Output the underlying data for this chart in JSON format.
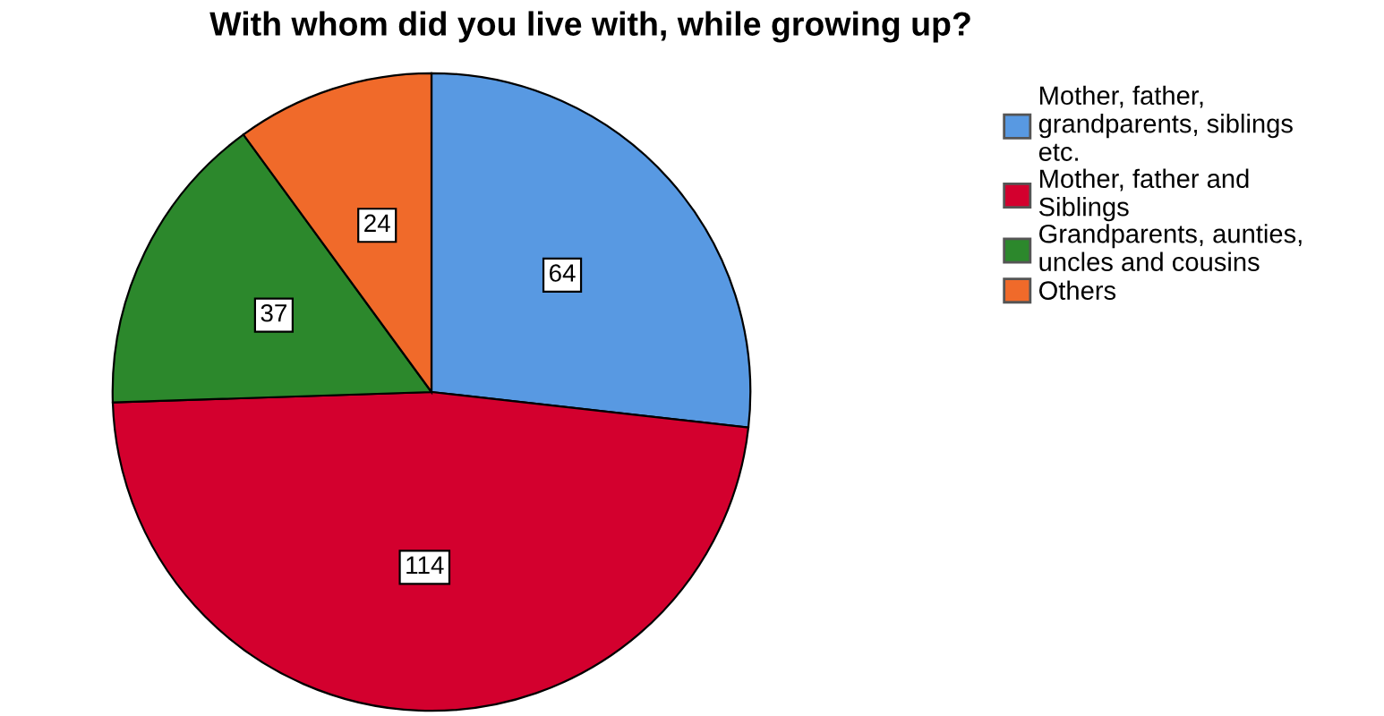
{
  "chart_data": {
    "type": "pie",
    "title": "With whom did you live with, while growing up?",
    "categories": [
      "Mother, father, grandparents, siblings etc.",
      "Mother, father and Siblings",
      "Grandparents, aunties, uncles and cousins",
      "Others"
    ],
    "values": [
      64,
      114,
      37,
      24
    ],
    "colors": [
      "#5899e2",
      "#d3002e",
      "#2c882c",
      "#f06a2a"
    ],
    "data_labels": true,
    "legend": "right"
  }
}
